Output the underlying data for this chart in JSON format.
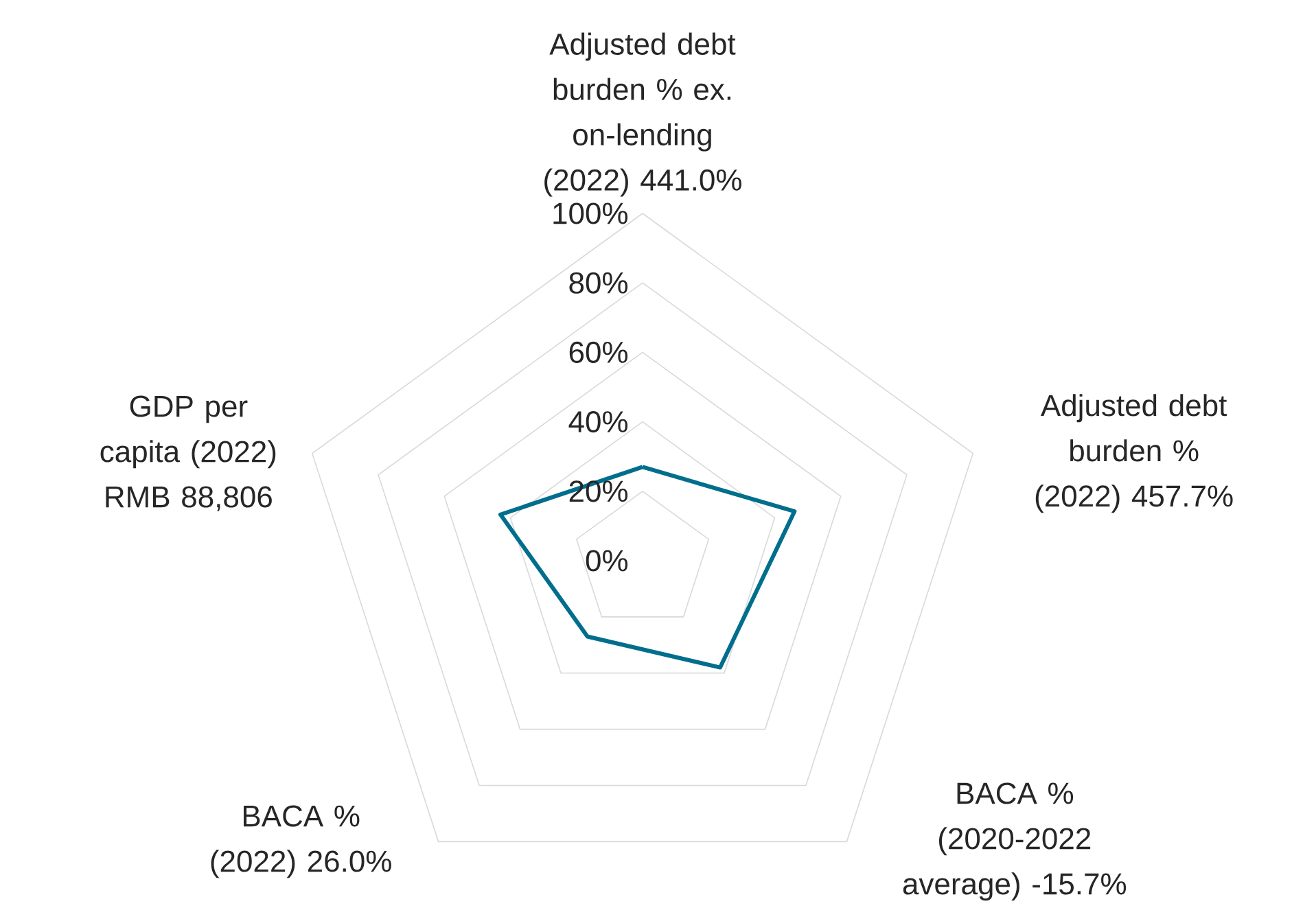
{
  "chart_data": {
    "type": "radar",
    "categories": [
      "Adjusted debt burden % ex. on-lending (2022) 441.0%",
      "Adjusted debt burden % (2022) 457.7%",
      "BACA % (2020-2022 average) -15.7%",
      "BACA % (2022) 26.0%",
      "GDP per capita (2022) RMB 88,806"
    ],
    "ylim": [
      0,
      100
    ],
    "yticks": [
      {
        "value": 0,
        "label": "0%"
      },
      {
        "value": 20,
        "label": "20%"
      },
      {
        "value": 40,
        "label": "40%"
      },
      {
        "value": 60,
        "label": "60%"
      },
      {
        "value": 80,
        "label": "80%"
      },
      {
        "value": 100,
        "label": "100%"
      }
    ],
    "grid": true,
    "series": [
      {
        "color": "#006e8c",
        "values": [
          27,
          46,
          38,
          27,
          43
        ]
      }
    ]
  }
}
